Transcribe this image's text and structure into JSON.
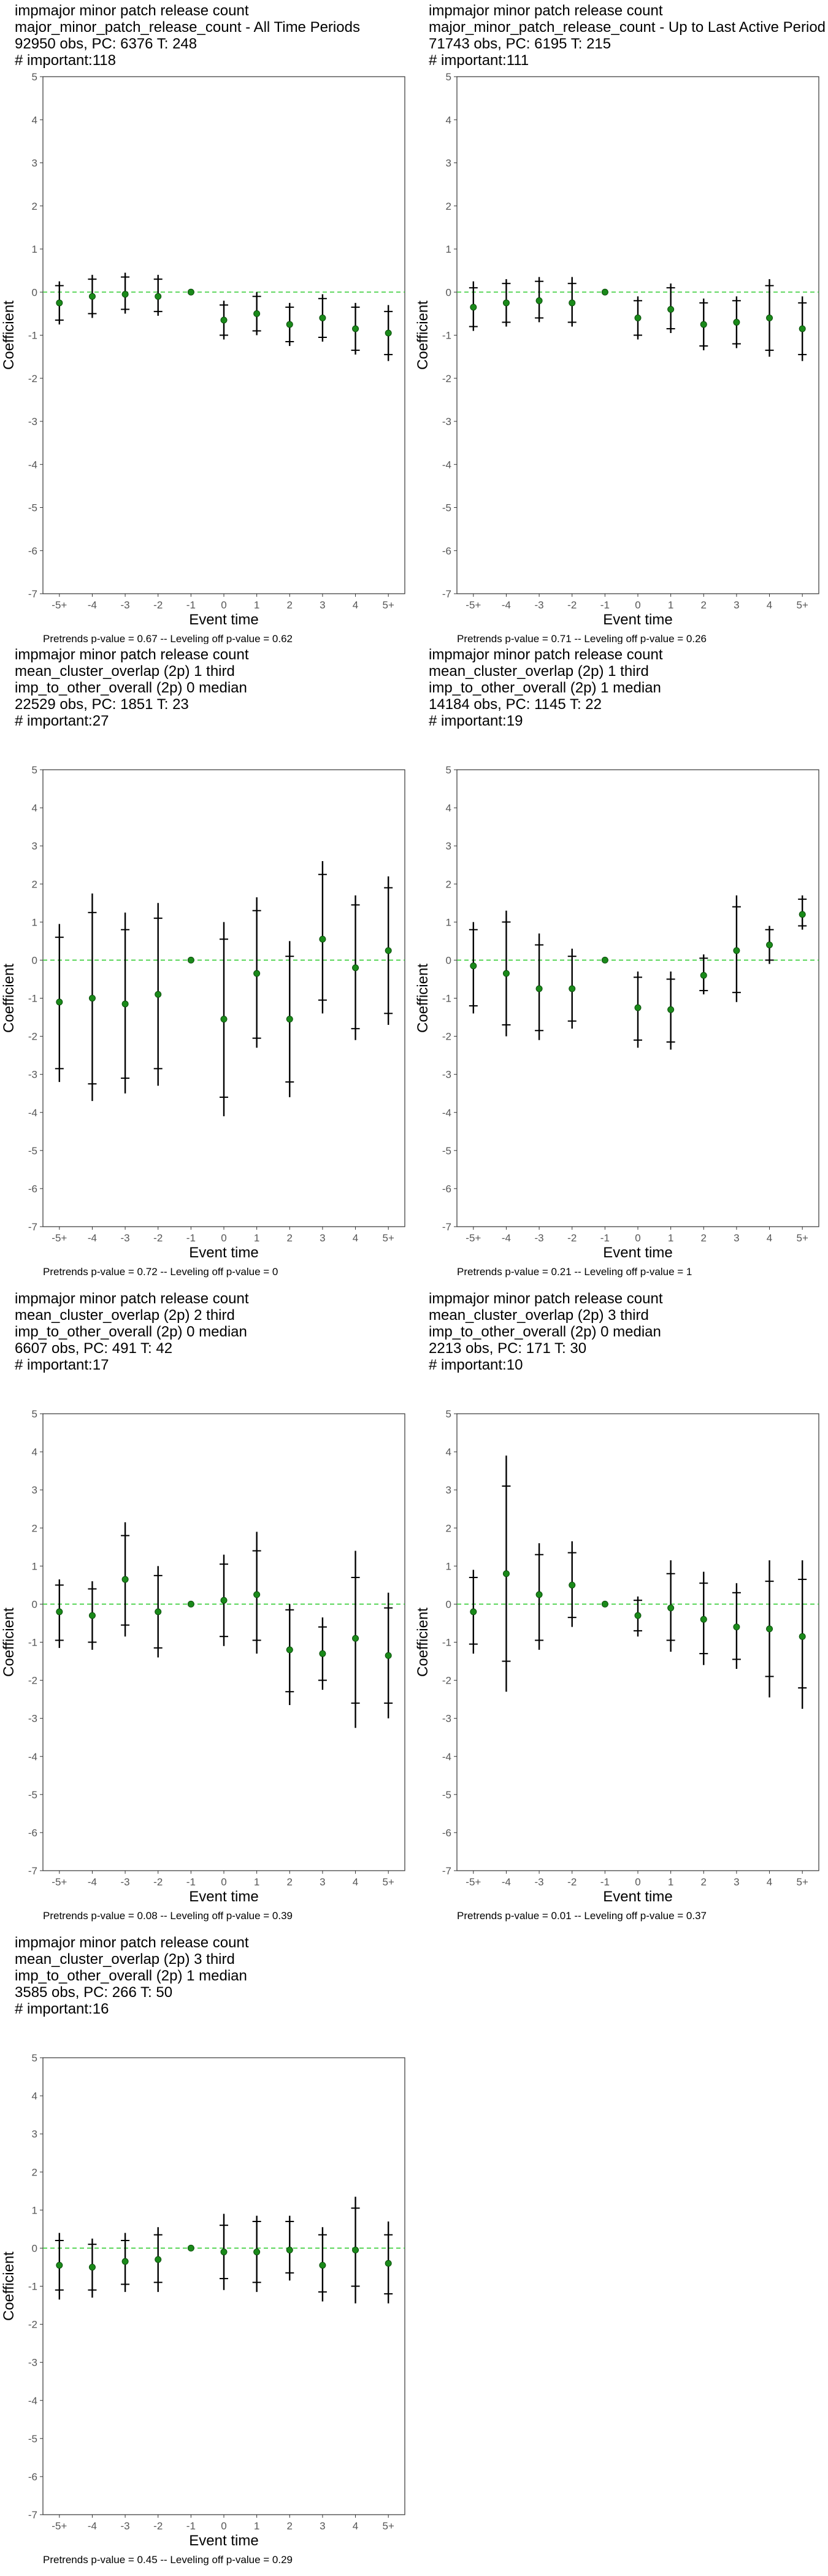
{
  "x_ticks": [
    "-5+",
    "-4",
    "-3",
    "-2",
    "-1",
    "0",
    "1",
    "2",
    "3",
    "4",
    "5+"
  ],
  "y_ticks": [
    5,
    4,
    3,
    2,
    1,
    0,
    -1,
    -2,
    -3,
    -4,
    -5,
    -6,
    -7
  ],
  "x_axis_label": "Event time",
  "y_axis_label": "Coefficient",
  "colors": {
    "point": "#1a8a1a",
    "zero_line": "#33cc33",
    "bar": "#000000",
    "frame": "#333333"
  },
  "chart_data": [
    {
      "type": "scatter",
      "title_lines": [
        " impmajor minor patch release count",
        "major_minor_patch_release_count - All Time Periods",
        "92950 obs, PC: 6376 T: 248",
        "# important:118"
      ],
      "footer": "Pretrends p-value = 0.67 -- Leveling off p-value = 0.62",
      "xlabel": "Event time",
      "ylabel": "Coefficient",
      "ylim": [
        -7,
        5
      ],
      "x": [
        "-5+",
        "-4",
        "-3",
        "-2",
        "-1",
        "0",
        "1",
        "2",
        "3",
        "4",
        "5+"
      ],
      "estimate": [
        -0.25,
        -0.1,
        -0.05,
        -0.1,
        0,
        -0.65,
        -0.5,
        -0.75,
        -0.6,
        -0.85,
        -0.95
      ],
      "ci95_low": [
        -0.75,
        -0.6,
        -0.5,
        -0.55,
        0,
        -1.1,
        -1.0,
        -1.25,
        -1.15,
        -1.45,
        -1.6
      ],
      "ci95_high": [
        0.25,
        0.4,
        0.45,
        0.4,
        0,
        -0.2,
        0.0,
        -0.25,
        -0.05,
        -0.25,
        -0.3
      ],
      "ci90_low": [
        -0.65,
        -0.5,
        -0.4,
        -0.45,
        0,
        -1.0,
        -0.9,
        -1.15,
        -1.05,
        -1.35,
        -1.45
      ],
      "ci90_high": [
        0.15,
        0.3,
        0.35,
        0.3,
        0,
        -0.3,
        -0.1,
        -0.35,
        -0.15,
        -0.35,
        -0.45
      ]
    },
    {
      "type": "scatter",
      "title_lines": [
        " impmajor minor patch release count",
        "major_minor_patch_release_count - Up to Last Active Period",
        "71743 obs, PC: 6195 T: 215",
        "# important:111"
      ],
      "footer": "Pretrends p-value = 0.71 -- Leveling off p-value = 0.26",
      "xlabel": "Event time",
      "ylabel": "Coefficient",
      "ylim": [
        -7,
        5
      ],
      "x": [
        "-5+",
        "-4",
        "-3",
        "-2",
        "-1",
        "0",
        "1",
        "2",
        "3",
        "4",
        "5+"
      ],
      "estimate": [
        -0.35,
        -0.25,
        -0.2,
        -0.25,
        0,
        -0.6,
        -0.4,
        -0.75,
        -0.7,
        -0.6,
        -0.85
      ],
      "ci95_low": [
        -0.9,
        -0.8,
        -0.7,
        -0.8,
        0,
        -1.1,
        -0.95,
        -1.35,
        -1.3,
        -1.5,
        -1.6
      ],
      "ci95_high": [
        0.25,
        0.3,
        0.35,
        0.35,
        0,
        -0.1,
        0.2,
        -0.15,
        -0.1,
        0.3,
        -0.1
      ],
      "ci90_low": [
        -0.8,
        -0.7,
        -0.6,
        -0.7,
        0,
        -1.0,
        -0.85,
        -1.25,
        -1.2,
        -1.35,
        -1.45
      ],
      "ci90_high": [
        0.1,
        0.2,
        0.25,
        0.2,
        0,
        -0.2,
        0.1,
        -0.25,
        -0.2,
        0.15,
        -0.25
      ]
    },
    {
      "type": "scatter",
      "title_lines": [
        " impmajor minor patch release count",
        "mean_cluster_overlap (2p) 1 third",
        "imp_to_other_overall (2p) 0 median",
        "22529 obs, PC: 1851 T: 23",
        "# important:27"
      ],
      "footer": "Pretrends p-value = 0.72 -- Leveling off p-value = 0",
      "xlabel": "Event time",
      "ylabel": "Coefficient",
      "ylim": [
        -7,
        5
      ],
      "x": [
        "-5+",
        "-4",
        "-3",
        "-2",
        "-1",
        "0",
        "1",
        "2",
        "3",
        "4",
        "5+"
      ],
      "estimate": [
        -1.1,
        -1.0,
        -1.15,
        -0.9,
        0,
        -1.55,
        -0.35,
        -1.55,
        0.55,
        -0.2,
        0.25
      ],
      "ci95_low": [
        -3.2,
        -3.7,
        -3.5,
        -3.3,
        0,
        -4.1,
        -2.3,
        -3.6,
        -1.4,
        -2.1,
        -1.7
      ],
      "ci95_high": [
        0.95,
        1.75,
        1.25,
        1.5,
        0,
        1.0,
        1.65,
        0.5,
        2.6,
        1.7,
        2.2
      ],
      "ci90_low": [
        -2.85,
        -3.25,
        -3.1,
        -2.85,
        0,
        -3.6,
        -2.05,
        -3.2,
        -1.05,
        -1.8,
        -1.4
      ],
      "ci90_high": [
        0.6,
        1.25,
        0.8,
        1.1,
        0,
        0.55,
        1.3,
        0.1,
        2.25,
        1.45,
        1.9
      ]
    },
    {
      "type": "scatter",
      "title_lines": [
        " impmajor minor patch release count",
        "mean_cluster_overlap (2p) 1 third",
        "imp_to_other_overall (2p) 1 median",
        "14184 obs, PC: 1145 T: 22",
        "# important:19"
      ],
      "footer": "Pretrends p-value = 0.21 -- Leveling off p-value = 1",
      "xlabel": "Event time",
      "ylabel": "Coefficient",
      "ylim": [
        -7,
        5
      ],
      "x": [
        "-5+",
        "-4",
        "-3",
        "-2",
        "-1",
        "0",
        "1",
        "2",
        "3",
        "4",
        "5+"
      ],
      "estimate": [
        -0.15,
        -0.35,
        -0.75,
        -0.75,
        0,
        -1.25,
        -1.3,
        -0.4,
        0.25,
        0.4,
        1.2
      ],
      "ci95_low": [
        -1.4,
        -2.0,
        -2.1,
        -1.8,
        0,
        -2.3,
        -2.35,
        -0.9,
        -1.1,
        -0.1,
        0.8
      ],
      "ci95_high": [
        1.0,
        1.3,
        0.7,
        0.3,
        0,
        -0.3,
        -0.3,
        0.15,
        1.7,
        0.9,
        1.7
      ],
      "ci90_low": [
        -1.2,
        -1.7,
        -1.85,
        -1.6,
        0,
        -2.1,
        -2.15,
        -0.8,
        -0.85,
        0.0,
        0.9
      ],
      "ci90_high": [
        0.8,
        1.0,
        0.4,
        0.1,
        0,
        -0.45,
        -0.5,
        0.05,
        1.4,
        0.8,
        1.6
      ]
    },
    {
      "type": "scatter",
      "title_lines": [
        " impmajor minor patch release count",
        "mean_cluster_overlap (2p) 2 third",
        "imp_to_other_overall (2p) 0 median",
        "6607 obs, PC: 491 T: 42",
        "# important:17"
      ],
      "footer": "Pretrends p-value = 0.08 -- Leveling off p-value = 0.39",
      "xlabel": "Event time",
      "ylabel": "Coefficient",
      "ylim": [
        -7,
        5
      ],
      "x": [
        "-5+",
        "-4",
        "-3",
        "-2",
        "-1",
        "0",
        "1",
        "2",
        "3",
        "4",
        "5+"
      ],
      "estimate": [
        -0.2,
        -0.3,
        0.65,
        -0.2,
        0,
        0.1,
        0.25,
        -1.2,
        -1.3,
        -0.9,
        -1.35
      ],
      "ci95_low": [
        -1.15,
        -1.2,
        -0.85,
        -1.4,
        0,
        -1.1,
        -1.3,
        -2.65,
        -2.25,
        -3.25,
        -3.0
      ],
      "ci95_high": [
        0.65,
        0.6,
        2.15,
        1.0,
        0,
        1.3,
        1.9,
        0.0,
        -0.35,
        1.4,
        0.3
      ],
      "ci90_low": [
        -0.95,
        -1.0,
        -0.55,
        -1.15,
        0,
        -0.85,
        -0.95,
        -2.3,
        -2.0,
        -2.6,
        -2.6
      ],
      "ci90_high": [
        0.5,
        0.4,
        1.8,
        0.75,
        0,
        1.05,
        1.4,
        -0.15,
        -0.6,
        0.7,
        -0.1
      ]
    },
    {
      "type": "scatter",
      "title_lines": [
        " impmajor minor patch release count",
        "mean_cluster_overlap (2p) 3 third",
        "imp_to_other_overall (2p) 0 median",
        "2213 obs, PC: 171 T: 30",
        "# important:10"
      ],
      "footer": "Pretrends p-value = 0.01 -- Leveling off p-value = 0.37",
      "xlabel": "Event time",
      "ylabel": "Coefficient",
      "ylim": [
        -7,
        5
      ],
      "x": [
        "-5+",
        "-4",
        "-3",
        "-2",
        "-1",
        "0",
        "1",
        "2",
        "3",
        "4",
        "5+"
      ],
      "estimate": [
        -0.2,
        0.8,
        0.25,
        0.5,
        0,
        -0.3,
        -0.1,
        -0.4,
        -0.6,
        -0.65,
        -0.85
      ],
      "ci95_low": [
        -1.3,
        -2.3,
        -1.2,
        -0.6,
        0,
        -0.85,
        -1.25,
        -1.6,
        -1.7,
        -2.45,
        -2.75
      ],
      "ci95_high": [
        0.9,
        3.9,
        1.6,
        1.65,
        0,
        0.2,
        1.15,
        0.85,
        0.55,
        1.15,
        1.15
      ],
      "ci90_low": [
        -1.05,
        -1.5,
        -0.95,
        -0.35,
        0,
        -0.7,
        -0.95,
        -1.3,
        -1.45,
        -1.9,
        -2.2
      ],
      "ci90_high": [
        0.7,
        3.1,
        1.3,
        1.35,
        0,
        0.1,
        0.8,
        0.55,
        0.3,
        0.6,
        0.65
      ]
    },
    {
      "type": "scatter",
      "title_lines": [
        " impmajor minor patch release count",
        "mean_cluster_overlap (2p) 3 third",
        "imp_to_other_overall (2p) 1 median",
        "3585 obs, PC: 266 T: 50",
        "# important:16"
      ],
      "footer": "Pretrends p-value = 0.45 -- Leveling off p-value = 0.29",
      "xlabel": "Event time",
      "ylabel": "Coefficient",
      "ylim": [
        -7,
        5
      ],
      "x": [
        "-5+",
        "-4",
        "-3",
        "-2",
        "-1",
        "0",
        "1",
        "2",
        "3",
        "4",
        "5+"
      ],
      "estimate": [
        -0.45,
        -0.5,
        -0.35,
        -0.3,
        0,
        -0.1,
        -0.1,
        -0.05,
        -0.45,
        -0.05,
        -0.4
      ],
      "ci95_low": [
        -1.35,
        -1.3,
        -1.15,
        -1.15,
        0,
        -1.1,
        -1.15,
        -0.85,
        -1.4,
        -1.45,
        -1.45
      ],
      "ci95_high": [
        0.4,
        0.25,
        0.4,
        0.55,
        0,
        0.9,
        0.85,
        0.85,
        0.55,
        1.35,
        0.7
      ],
      "ci90_low": [
        -1.1,
        -1.1,
        -0.95,
        -0.9,
        0,
        -0.8,
        -0.9,
        -0.65,
        -1.15,
        -1.0,
        -1.2
      ],
      "ci90_high": [
        0.2,
        0.1,
        0.2,
        0.35,
        0,
        0.6,
        0.7,
        0.7,
        0.35,
        1.05,
        0.35
      ]
    }
  ]
}
